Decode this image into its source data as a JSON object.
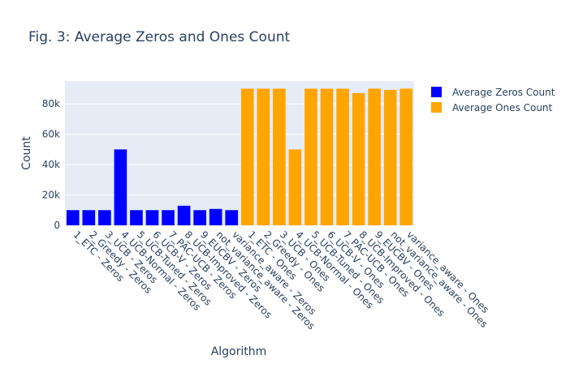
{
  "chart_data": {
    "type": "bar",
    "title": "Fig. 3: Average Zeros and Ones Count",
    "xlabel": "Algorithm",
    "ylabel": "Count",
    "ylim": [
      0,
      95000
    ],
    "y_ticks": [
      0,
      20000,
      40000,
      60000,
      80000
    ],
    "y_tick_labels": [
      "0",
      "20k",
      "40k",
      "60k",
      "80k"
    ],
    "grid": true,
    "legend_position": "top-right",
    "categories": [
      "1_ETC - Zeros",
      "2_Greedy - Zeros",
      "3_UCB - Zeros",
      "4_UCB-Normal - Zeros",
      "5_UCB-Tuned - Zeros",
      "6_UCB-V - Zeros",
      "7_PAC-UCB - Zeros",
      "8_UCB-Improved - Zeros",
      "9_EUCBV - Zeros",
      "not_variance_aware - Zeros",
      "variance_aware - Zeros",
      "1_ETC - Ones",
      "2_Greedy - Ones",
      "3_UCB - Ones",
      "4_UCB-Normal - Ones",
      "5_UCB-Tuned - Ones",
      "6_UCB-V - Ones",
      "7_PAC-UCB - Ones",
      "8_UCB-Improved - Ones",
      "9_EUCBV - Ones",
      "not_variance_aware - Ones",
      "variance_aware - Ones"
    ],
    "series": [
      {
        "name": "Average Zeros Count",
        "color": "#0000ff",
        "values": [
          10000,
          10000,
          10000,
          50000,
          10000,
          10000,
          10000,
          12900,
          10000,
          10800,
          10000,
          null,
          null,
          null,
          null,
          null,
          null,
          null,
          null,
          null,
          null,
          null
        ]
      },
      {
        "name": "Average Ones Count",
        "color": "#ffa500",
        "values": [
          null,
          null,
          null,
          null,
          null,
          null,
          null,
          null,
          null,
          null,
          null,
          90000,
          90000,
          90000,
          50000,
          90000,
          90000,
          90000,
          87100,
          90000,
          89200,
          90000
        ]
      }
    ]
  }
}
